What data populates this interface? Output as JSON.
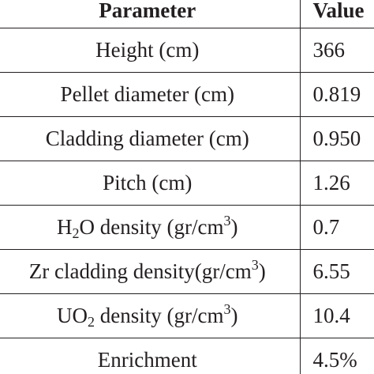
{
  "table": {
    "headers": {
      "parameter": "Parameter",
      "value": "Value"
    },
    "rows": [
      {
        "parameter": {
          "pre": "Height (cm)"
        },
        "value": "366"
      },
      {
        "parameter": {
          "pre": "Pellet diameter (cm)"
        },
        "value": "0.819"
      },
      {
        "parameter": {
          "pre": "Cladding diameter (cm)"
        },
        "value": "0.950"
      },
      {
        "parameter": {
          "pre": "Pitch (cm)"
        },
        "value": "1.26"
      },
      {
        "parameter": {
          "pre": "H",
          "sub": "2",
          "mid": "O density (gr/cm",
          "sup": "3",
          "post": ")"
        },
        "value": "0.7"
      },
      {
        "parameter": {
          "pre": "Zr cladding density(gr/cm",
          "sup": "3",
          "post": ")"
        },
        "value": "6.55"
      },
      {
        "parameter": {
          "pre": "UO",
          "sub": "2",
          "mid": " density (gr/cm",
          "sup": "3",
          "post": ")"
        },
        "value": "10.4"
      },
      {
        "parameter": {
          "pre": "Enrichment"
        },
        "value": "4.5%"
      }
    ]
  }
}
